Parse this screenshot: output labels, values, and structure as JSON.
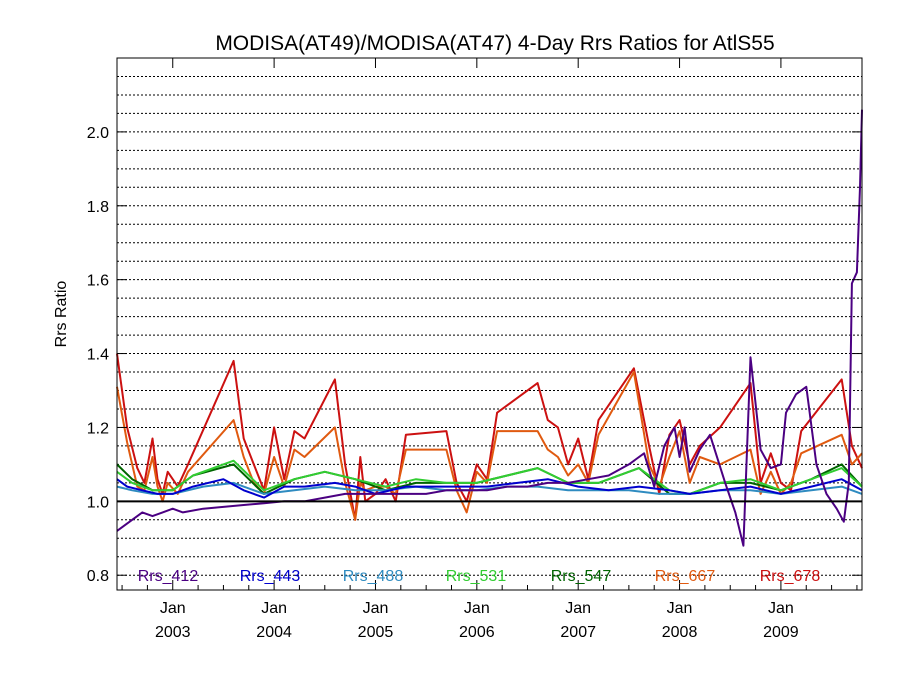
{
  "chart_data": {
    "type": "line",
    "title": "MODISA(AT49)/MODISA(AT47) 4-Day Rrs Ratios for AtlS55",
    "ylabel": "Rrs Ratio",
    "xlabel": "",
    "xlim": [
      2002.45,
      2009.8
    ],
    "ylim": [
      0.76,
      2.2
    ],
    "yticks": [
      {
        "value": 0.8,
        "label": "0.8"
      },
      {
        "value": 1.0,
        "label": "1.0"
      },
      {
        "value": 1.2,
        "label": "1.2"
      },
      {
        "value": 1.4,
        "label": "1.4"
      },
      {
        "value": 1.6,
        "label": "1.6"
      },
      {
        "value": 1.8,
        "label": "1.8"
      },
      {
        "value": 2.0,
        "label": "2.0"
      }
    ],
    "xticks": [
      {
        "value": 2003.0,
        "month": "Jan",
        "year": "2003"
      },
      {
        "value": 2004.0,
        "month": "Jan",
        "year": "2004"
      },
      {
        "value": 2005.0,
        "month": "Jan",
        "year": "2005"
      },
      {
        "value": 2006.0,
        "month": "Jan",
        "year": "2006"
      },
      {
        "value": 2007.0,
        "month": "Jan",
        "year": "2007"
      },
      {
        "value": 2008.0,
        "month": "Jan",
        "year": "2008"
      },
      {
        "value": 2009.0,
        "month": "Jan",
        "year": "2009"
      }
    ],
    "grid": "horizontal dotted",
    "reference_line": 1.0,
    "legend_position": "bottom inside",
    "series": [
      {
        "name": "Rrs_412",
        "color": "#4b0082",
        "points": [
          [
            2002.45,
            0.92
          ],
          [
            2002.6,
            0.95
          ],
          [
            2002.7,
            0.97
          ],
          [
            2002.8,
            0.96
          ],
          [
            2002.9,
            0.97
          ],
          [
            2003.0,
            0.98
          ],
          [
            2003.1,
            0.97
          ],
          [
            2003.3,
            0.98
          ],
          [
            2003.5,
            0.985
          ],
          [
            2003.7,
            0.99
          ],
          [
            2003.9,
            0.995
          ],
          [
            2004.1,
            1.0
          ],
          [
            2004.3,
            1.0
          ],
          [
            2004.5,
            1.01
          ],
          [
            2004.7,
            1.02
          ],
          [
            2004.9,
            1.02
          ],
          [
            2005.1,
            1.02
          ],
          [
            2005.3,
            1.02
          ],
          [
            2005.5,
            1.02
          ],
          [
            2005.7,
            1.03
          ],
          [
            2005.9,
            1.03
          ],
          [
            2006.1,
            1.03
          ],
          [
            2006.3,
            1.04
          ],
          [
            2006.5,
            1.04
          ],
          [
            2006.7,
            1.05
          ],
          [
            2006.9,
            1.05
          ],
          [
            2007.1,
            1.06
          ],
          [
            2007.3,
            1.07
          ],
          [
            2007.5,
            1.1
          ],
          [
            2007.65,
            1.13
          ],
          [
            2007.75,
            1.04
          ],
          [
            2007.85,
            1.15
          ],
          [
            2007.95,
            1.2
          ],
          [
            2008.0,
            1.12
          ],
          [
            2008.05,
            1.2
          ],
          [
            2008.1,
            1.08
          ],
          [
            2008.2,
            1.14
          ],
          [
            2008.3,
            1.18
          ],
          [
            2008.45,
            1.05
          ],
          [
            2008.55,
            0.97
          ],
          [
            2008.63,
            0.88
          ],
          [
            2008.7,
            1.39
          ],
          [
            2008.8,
            1.14
          ],
          [
            2008.9,
            1.09
          ],
          [
            2009.0,
            1.1
          ],
          [
            2009.05,
            1.24
          ],
          [
            2009.15,
            1.29
          ],
          [
            2009.25,
            1.31
          ],
          [
            2009.35,
            1.1
          ],
          [
            2009.45,
            1.02
          ],
          [
            2009.55,
            0.98
          ],
          [
            2009.62,
            0.945
          ],
          [
            2009.67,
            1.05
          ],
          [
            2009.7,
            1.59
          ],
          [
            2009.75,
            1.62
          ],
          [
            2009.78,
            1.85
          ],
          [
            2009.8,
            2.06
          ]
        ]
      },
      {
        "name": "Rrs_443",
        "color": "#0000cd",
        "points": [
          [
            2002.45,
            1.06
          ],
          [
            2002.55,
            1.04
          ],
          [
            2002.7,
            1.03
          ],
          [
            2002.85,
            1.02
          ],
          [
            2003.0,
            1.02
          ],
          [
            2003.2,
            1.04
          ],
          [
            2003.5,
            1.06
          ],
          [
            2003.7,
            1.03
          ],
          [
            2003.9,
            1.01
          ],
          [
            2004.1,
            1.04
          ],
          [
            2004.3,
            1.04
          ],
          [
            2004.6,
            1.05
          ],
          [
            2004.8,
            1.04
          ],
          [
            2005.0,
            1.02
          ],
          [
            2005.3,
            1.04
          ],
          [
            2005.6,
            1.04
          ],
          [
            2005.9,
            1.04
          ],
          [
            2006.1,
            1.04
          ],
          [
            2006.4,
            1.05
          ],
          [
            2006.7,
            1.06
          ],
          [
            2007.0,
            1.04
          ],
          [
            2007.3,
            1.03
          ],
          [
            2007.6,
            1.04
          ],
          [
            2007.9,
            1.03
          ],
          [
            2008.1,
            1.02
          ],
          [
            2008.4,
            1.03
          ],
          [
            2008.7,
            1.04
          ],
          [
            2009.0,
            1.02
          ],
          [
            2009.3,
            1.04
          ],
          [
            2009.6,
            1.06
          ],
          [
            2009.8,
            1.03
          ]
        ]
      },
      {
        "name": "Rrs_488",
        "color": "#2e8bc0",
        "points": [
          [
            2002.45,
            1.04
          ],
          [
            2002.6,
            1.03
          ],
          [
            2002.8,
            1.02
          ],
          [
            2003.0,
            1.02
          ],
          [
            2003.3,
            1.04
          ],
          [
            2003.6,
            1.05
          ],
          [
            2003.9,
            1.02
          ],
          [
            2004.2,
            1.03
          ],
          [
            2004.5,
            1.04
          ],
          [
            2004.8,
            1.03
          ],
          [
            2005.1,
            1.03
          ],
          [
            2005.4,
            1.04
          ],
          [
            2005.7,
            1.03
          ],
          [
            2006.0,
            1.03
          ],
          [
            2006.3,
            1.04
          ],
          [
            2006.6,
            1.04
          ],
          [
            2006.9,
            1.03
          ],
          [
            2007.2,
            1.03
          ],
          [
            2007.5,
            1.03
          ],
          [
            2007.8,
            1.02
          ],
          [
            2008.1,
            1.02
          ],
          [
            2008.4,
            1.03
          ],
          [
            2008.7,
            1.03
          ],
          [
            2009.0,
            1.02
          ],
          [
            2009.3,
            1.03
          ],
          [
            2009.6,
            1.04
          ],
          [
            2009.8,
            1.02
          ]
        ]
      },
      {
        "name": "Rrs_531",
        "color": "#32cd32",
        "points": [
          [
            2002.45,
            1.08
          ],
          [
            2002.6,
            1.05
          ],
          [
            2002.8,
            1.03
          ],
          [
            2003.0,
            1.03
          ],
          [
            2003.2,
            1.07
          ],
          [
            2003.6,
            1.11
          ],
          [
            2003.9,
            1.03
          ],
          [
            2004.2,
            1.06
          ],
          [
            2004.5,
            1.08
          ],
          [
            2004.8,
            1.06
          ],
          [
            2005.1,
            1.04
          ],
          [
            2005.4,
            1.06
          ],
          [
            2005.7,
            1.05
          ],
          [
            2006.0,
            1.05
          ],
          [
            2006.3,
            1.07
          ],
          [
            2006.6,
            1.09
          ],
          [
            2006.9,
            1.05
          ],
          [
            2007.2,
            1.05
          ],
          [
            2007.6,
            1.09
          ],
          [
            2007.9,
            1.03
          ],
          [
            2008.1,
            1.02
          ],
          [
            2008.4,
            1.05
          ],
          [
            2008.7,
            1.06
          ],
          [
            2009.0,
            1.03
          ],
          [
            2009.3,
            1.06
          ],
          [
            2009.6,
            1.09
          ],
          [
            2009.8,
            1.04
          ]
        ]
      },
      {
        "name": "Rrs_547",
        "color": "#006400",
        "points": [
          [
            2002.45,
            1.1
          ],
          [
            2002.6,
            1.06
          ],
          [
            2002.8,
            1.03
          ],
          [
            2003.0,
            1.03
          ],
          [
            2003.2,
            1.07
          ],
          [
            2003.6,
            1.1
          ],
          [
            2003.9,
            1.02
          ],
          [
            2004.2,
            1.06
          ],
          [
            2004.5,
            1.08
          ],
          [
            2004.8,
            1.06
          ],
          [
            2005.1,
            1.03
          ],
          [
            2005.4,
            1.05
          ],
          [
            2005.7,
            1.05
          ],
          [
            2006.0,
            1.05
          ],
          [
            2006.3,
            1.07
          ],
          [
            2006.6,
            1.09
          ],
          [
            2006.9,
            1.05
          ],
          [
            2007.2,
            1.05
          ],
          [
            2007.6,
            1.09
          ],
          [
            2007.9,
            1.02
          ],
          [
            2008.1,
            1.02
          ],
          [
            2008.4,
            1.05
          ],
          [
            2008.7,
            1.05
          ],
          [
            2009.0,
            1.03
          ],
          [
            2009.3,
            1.06
          ],
          [
            2009.6,
            1.1
          ],
          [
            2009.8,
            1.04
          ]
        ]
      },
      {
        "name": "Rrs_667",
        "color": "#e05a10",
        "points": [
          [
            2002.45,
            1.31
          ],
          [
            2002.55,
            1.16
          ],
          [
            2002.65,
            1.04
          ],
          [
            2002.72,
            1.03
          ],
          [
            2002.8,
            1.12
          ],
          [
            2002.85,
            1.04
          ],
          [
            2002.9,
            1.0
          ],
          [
            2002.95,
            1.05
          ],
          [
            2003.05,
            1.02
          ],
          [
            2003.15,
            1.08
          ],
          [
            2003.6,
            1.22
          ],
          [
            2003.7,
            1.12
          ],
          [
            2003.8,
            1.05
          ],
          [
            2003.9,
            1.02
          ],
          [
            2004.0,
            1.12
          ],
          [
            2004.1,
            1.04
          ],
          [
            2004.2,
            1.14
          ],
          [
            2004.3,
            1.12
          ],
          [
            2004.6,
            1.2
          ],
          [
            2004.7,
            1.05
          ],
          [
            2004.8,
            0.95
          ],
          [
            2004.85,
            1.05
          ],
          [
            2004.9,
            1.03
          ],
          [
            2005.0,
            1.04
          ],
          [
            2005.1,
            1.04
          ],
          [
            2005.2,
            1.02
          ],
          [
            2005.3,
            1.14
          ],
          [
            2005.7,
            1.14
          ],
          [
            2005.8,
            1.03
          ],
          [
            2005.9,
            0.97
          ],
          [
            2006.0,
            1.08
          ],
          [
            2006.1,
            1.05
          ],
          [
            2006.2,
            1.19
          ],
          [
            2006.6,
            1.19
          ],
          [
            2006.7,
            1.14
          ],
          [
            2006.8,
            1.12
          ],
          [
            2006.9,
            1.07
          ],
          [
            2007.0,
            1.1
          ],
          [
            2007.1,
            1.05
          ],
          [
            2007.2,
            1.18
          ],
          [
            2007.55,
            1.35
          ],
          [
            2007.7,
            1.1
          ],
          [
            2007.8,
            1.04
          ],
          [
            2007.9,
            1.12
          ],
          [
            2008.0,
            1.19
          ],
          [
            2008.1,
            1.05
          ],
          [
            2008.2,
            1.12
          ],
          [
            2008.4,
            1.1
          ],
          [
            2008.7,
            1.14
          ],
          [
            2008.8,
            1.02
          ],
          [
            2008.9,
            1.08
          ],
          [
            2009.0,
            1.02
          ],
          [
            2009.1,
            1.05
          ],
          [
            2009.2,
            1.13
          ],
          [
            2009.6,
            1.18
          ],
          [
            2009.7,
            1.1
          ],
          [
            2009.8,
            1.13
          ]
        ]
      },
      {
        "name": "Rrs_678",
        "color": "#cc1111",
        "points": [
          [
            2002.45,
            1.4
          ],
          [
            2002.55,
            1.2
          ],
          [
            2002.65,
            1.09
          ],
          [
            2002.72,
            1.05
          ],
          [
            2002.8,
            1.17
          ],
          [
            2002.85,
            1.06
          ],
          [
            2002.9,
            1.02
          ],
          [
            2002.95,
            1.08
          ],
          [
            2003.05,
            1.04
          ],
          [
            2003.15,
            1.1
          ],
          [
            2003.6,
            1.38
          ],
          [
            2003.7,
            1.17
          ],
          [
            2003.8,
            1.1
          ],
          [
            2003.9,
            1.03
          ],
          [
            2004.0,
            1.2
          ],
          [
            2004.1,
            1.06
          ],
          [
            2004.2,
            1.19
          ],
          [
            2004.3,
            1.17
          ],
          [
            2004.6,
            1.33
          ],
          [
            2004.7,
            1.1
          ],
          [
            2004.8,
            0.95
          ],
          [
            2004.85,
            1.12
          ],
          [
            2004.9,
            1.0
          ],
          [
            2005.0,
            1.02
          ],
          [
            2005.1,
            1.06
          ],
          [
            2005.2,
            1.0
          ],
          [
            2005.3,
            1.18
          ],
          [
            2005.7,
            1.19
          ],
          [
            2005.8,
            1.05
          ],
          [
            2005.9,
            1.0
          ],
          [
            2006.0,
            1.1
          ],
          [
            2006.1,
            1.06
          ],
          [
            2006.2,
            1.24
          ],
          [
            2006.6,
            1.32
          ],
          [
            2006.7,
            1.22
          ],
          [
            2006.8,
            1.2
          ],
          [
            2006.9,
            1.1
          ],
          [
            2007.0,
            1.17
          ],
          [
            2007.1,
            1.06
          ],
          [
            2007.2,
            1.22
          ],
          [
            2007.55,
            1.36
          ],
          [
            2007.7,
            1.15
          ],
          [
            2007.8,
            1.02
          ],
          [
            2007.9,
            1.18
          ],
          [
            2008.0,
            1.22
          ],
          [
            2008.1,
            1.1
          ],
          [
            2008.2,
            1.15
          ],
          [
            2008.4,
            1.2
          ],
          [
            2008.7,
            1.32
          ],
          [
            2008.8,
            1.05
          ],
          [
            2008.9,
            1.13
          ],
          [
            2009.0,
            1.05
          ],
          [
            2009.1,
            1.03
          ],
          [
            2009.2,
            1.19
          ],
          [
            2009.6,
            1.33
          ],
          [
            2009.7,
            1.15
          ],
          [
            2009.8,
            1.09
          ]
        ]
      }
    ]
  }
}
